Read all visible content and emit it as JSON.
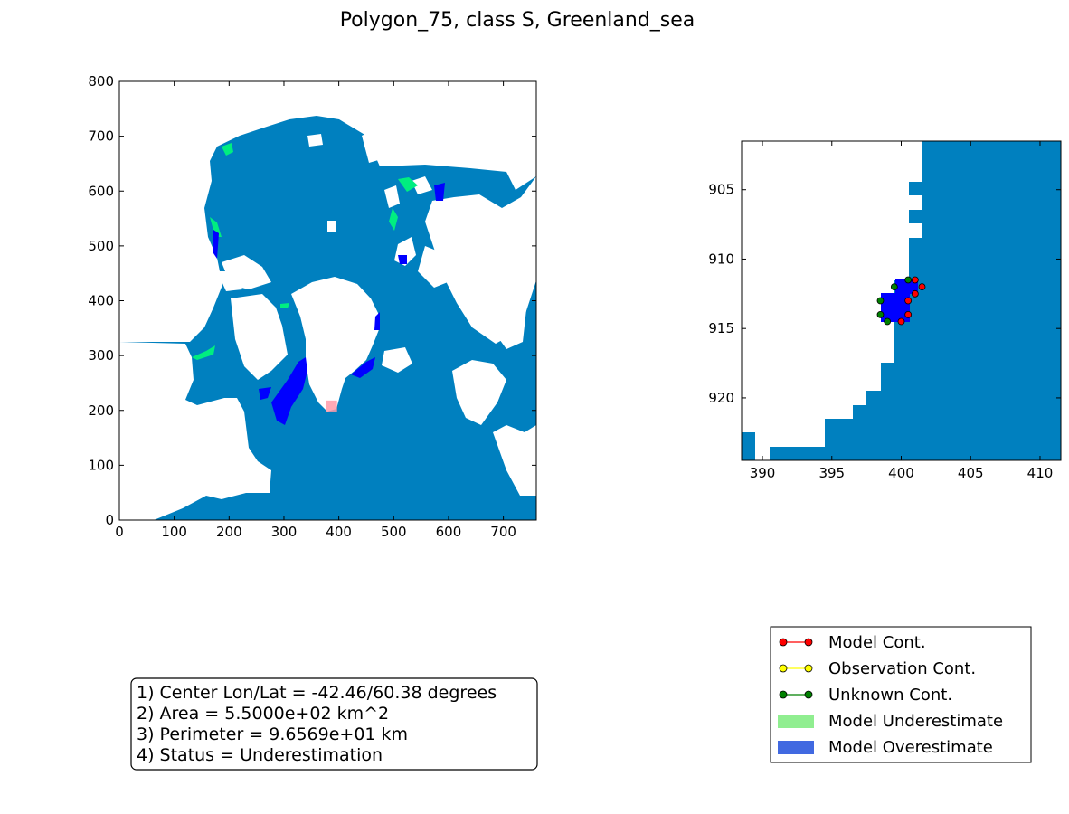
{
  "chart_data": {
    "title": "Polygon_75, class S, Greenland_sea",
    "colors": {
      "ocean": "#0080bf",
      "land": "#ffffff",
      "underestimate": "#90ee90",
      "underestimate_map": "#00ee80",
      "overestimate": "#4169e1",
      "overestimate_map": "#0000ff",
      "highlight": "#ff9aa8",
      "model_cont": "#ff0000",
      "observation_cont": "#ffff00",
      "unknown_cont": "#008000"
    },
    "panels": [
      {
        "id": "overview",
        "type": "heatmap",
        "xlim": [
          0,
          760
        ],
        "ylim": [
          0,
          800
        ],
        "xticks": [
          "0",
          "100",
          "200",
          "300",
          "400",
          "500",
          "600",
          "700"
        ],
        "yticks": [
          "0",
          "100",
          "200",
          "300",
          "400",
          "500",
          "600",
          "700",
          "800"
        ],
        "highlight_box": {
          "x": [
            390,
            410
          ],
          "y": [
            198,
            218
          ]
        }
      },
      {
        "id": "zoom",
        "type": "heatmap",
        "xlim": [
          388.5,
          411.5
        ],
        "ylim": [
          924.5,
          901.5
        ],
        "xticks": [
          "390",
          "395",
          "400",
          "405",
          "410"
        ],
        "yticks": [
          "905",
          "910",
          "915",
          "920"
        ],
        "model_cont_points": [
          [
            401,
            911.5
          ],
          [
            401.5,
            912
          ],
          [
            401,
            912.5
          ],
          [
            400.5,
            913
          ],
          [
            400.5,
            914
          ],
          [
            400,
            914.5
          ]
        ],
        "unknown_cont_points": [
          [
            400.5,
            911.5
          ],
          [
            399.5,
            912
          ],
          [
            398.5,
            913
          ],
          [
            398.5,
            914
          ],
          [
            399,
            914.5
          ]
        ]
      }
    ],
    "info": [
      "1) Center Lon/Lat = -42.46/60.38 degrees",
      "2) Area = 5.5000e+02 km^2",
      "3) Perimeter = 9.6569e+01 km",
      "4) Status = Underestimation"
    ],
    "legend": [
      {
        "label": "Model Cont.",
        "kind": "line-marker",
        "color": "#ff0000"
      },
      {
        "label": "Observation Cont.",
        "kind": "line-marker",
        "color": "#ffff00"
      },
      {
        "label": "Unknown Cont.",
        "kind": "line-marker",
        "color": "#008000"
      },
      {
        "label": "Model Underestimate",
        "kind": "patch",
        "color": "#90ee90"
      },
      {
        "label": "Model Overestimate",
        "kind": "patch",
        "color": "#4169e1"
      }
    ]
  }
}
